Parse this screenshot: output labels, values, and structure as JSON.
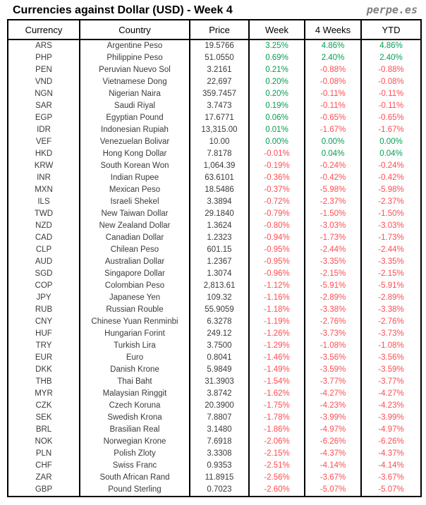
{
  "header": {
    "title": "Currencies against Dollar (USD) - Week 4",
    "logo": "perpe.es"
  },
  "colors": {
    "positive": "#00A152",
    "negative": "#FF4D50",
    "text": "#3a3a3a",
    "border": "#000000",
    "logo": "#7f7f7f"
  },
  "table": {
    "columns": [
      "Currency",
      "Country",
      "Price",
      "Week",
      "4 Weeks",
      "YTD"
    ],
    "rows": [
      {
        "code": "ARS",
        "country": "Argentine Peso",
        "price": "19.5766",
        "week": "3.25%",
        "weeks4": "4.86%",
        "ytd": "4.86%"
      },
      {
        "code": "PHP",
        "country": "Philippine Peso",
        "price": "51.0550",
        "week": "0.69%",
        "weeks4": "2.40%",
        "ytd": "2.40%"
      },
      {
        "code": "PEN",
        "country": "Peruvian Nuevo Sol",
        "price": "3.2161",
        "week": "0.21%",
        "weeks4": "-0.88%",
        "ytd": "-0.88%"
      },
      {
        "code": "VND",
        "country": "Vietnamese Dong",
        "price": "22,697",
        "week": "0.20%",
        "weeks4": "-0.08%",
        "ytd": "-0.08%"
      },
      {
        "code": "NGN",
        "country": "Nigerian Naira",
        "price": "359.7457",
        "week": "0.20%",
        "weeks4": "-0.11%",
        "ytd": "-0.11%"
      },
      {
        "code": "SAR",
        "country": "Saudi Riyal",
        "price": "3.7473",
        "week": "0.19%",
        "weeks4": "-0.11%",
        "ytd": "-0.11%"
      },
      {
        "code": "EGP",
        "country": "Egyptian Pound",
        "price": "17.6771",
        "week": "0.06%",
        "weeks4": "-0.65%",
        "ytd": "-0.65%"
      },
      {
        "code": "IDR",
        "country": "Indonesian Rupiah",
        "price": "13,315.00",
        "week": "0.01%",
        "weeks4": "-1.67%",
        "ytd": "-1.67%"
      },
      {
        "code": "VEF",
        "country": "Venezuelan Bolivar",
        "price": "10.00",
        "week": "0.00%",
        "weeks4": "0.00%",
        "ytd": "0.00%"
      },
      {
        "code": "HKD",
        "country": "Hong Kong Dollar",
        "price": "7.8178",
        "week": "-0.01%",
        "weeks4": "0.04%",
        "ytd": "0.04%"
      },
      {
        "code": "KRW",
        "country": "South Korean Won",
        "price": "1,064.39",
        "week": "-0.19%",
        "weeks4": "-0.24%",
        "ytd": "-0.24%"
      },
      {
        "code": "INR",
        "country": "Indian Rupee",
        "price": "63.6101",
        "week": "-0.36%",
        "weeks4": "-0.42%",
        "ytd": "-0.42%"
      },
      {
        "code": "MXN",
        "country": "Mexican Peso",
        "price": "18.5486",
        "week": "-0.37%",
        "weeks4": "-5.98%",
        "ytd": "-5.98%"
      },
      {
        "code": "ILS",
        "country": "Israeli Shekel",
        "price": "3.3894",
        "week": "-0.72%",
        "weeks4": "-2.37%",
        "ytd": "-2.37%"
      },
      {
        "code": "TWD",
        "country": "New Taiwan Dollar",
        "price": "29.1840",
        "week": "-0.79%",
        "weeks4": "-1.50%",
        "ytd": "-1.50%"
      },
      {
        "code": "NZD",
        "country": "New Zealand Dollar",
        "price": "1.3624",
        "week": "-0.80%",
        "weeks4": "-3.03%",
        "ytd": "-3.03%"
      },
      {
        "code": "CAD",
        "country": "Canadian Dollar",
        "price": "1.2323",
        "week": "-0.94%",
        "weeks4": "-1.73%",
        "ytd": "-1.73%"
      },
      {
        "code": "CLP",
        "country": "Chilean Peso",
        "price": "601.15",
        "week": "-0.95%",
        "weeks4": "-2.44%",
        "ytd": "-2.44%"
      },
      {
        "code": "AUD",
        "country": "Australian Dollar",
        "price": "1.2367",
        "week": "-0.95%",
        "weeks4": "-3.35%",
        "ytd": "-3.35%"
      },
      {
        "code": "SGD",
        "country": "Singapore Dollar",
        "price": "1.3074",
        "week": "-0.96%",
        "weeks4": "-2.15%",
        "ytd": "-2.15%"
      },
      {
        "code": "COP",
        "country": "Colombian Peso",
        "price": "2,813.61",
        "week": "-1.12%",
        "weeks4": "-5.91%",
        "ytd": "-5.91%"
      },
      {
        "code": "JPY",
        "country": "Japanese Yen",
        "price": "109.32",
        "week": "-1.16%",
        "weeks4": "-2.89%",
        "ytd": "-2.89%"
      },
      {
        "code": "RUB",
        "country": "Russian Rouble",
        "price": "55.9059",
        "week": "-1.18%",
        "weeks4": "-3.38%",
        "ytd": "-3.38%"
      },
      {
        "code": "CNY",
        "country": "Chinese Yuan Renminbi",
        "price": "6.3278",
        "week": "-1.19%",
        "weeks4": "-2.76%",
        "ytd": "-2.76%"
      },
      {
        "code": "HUF",
        "country": "Hungarian Forint",
        "price": "249.12",
        "week": "-1.26%",
        "weeks4": "-3.73%",
        "ytd": "-3.73%"
      },
      {
        "code": "TRY",
        "country": "Turkish Lira",
        "price": "3.7500",
        "week": "-1.29%",
        "weeks4": "-1.08%",
        "ytd": "-1.08%"
      },
      {
        "code": "EUR",
        "country": "Euro",
        "price": "0.8041",
        "week": "-1.46%",
        "weeks4": "-3.56%",
        "ytd": "-3.56%"
      },
      {
        "code": "DKK",
        "country": "Danish Krone",
        "price": "5.9849",
        "week": "-1.49%",
        "weeks4": "-3.59%",
        "ytd": "-3.59%"
      },
      {
        "code": "THB",
        "country": "Thai Baht",
        "price": "31.3903",
        "week": "-1.54%",
        "weeks4": "-3.77%",
        "ytd": "-3.77%"
      },
      {
        "code": "MYR",
        "country": "Malaysian Ringgit",
        "price": "3.8742",
        "week": "-1.62%",
        "weeks4": "-4.27%",
        "ytd": "-4.27%"
      },
      {
        "code": "CZK",
        "country": "Czech Koruna",
        "price": "20.3900",
        "week": "-1.75%",
        "weeks4": "-4.23%",
        "ytd": "-4.23%"
      },
      {
        "code": "SEK",
        "country": "Swedish Krona",
        "price": "7.8807",
        "week": "-1.78%",
        "weeks4": "-3.99%",
        "ytd": "-3.99%"
      },
      {
        "code": "BRL",
        "country": "Brasilian Real",
        "price": "3.1480",
        "week": "-1.86%",
        "weeks4": "-4.97%",
        "ytd": "-4.97%"
      },
      {
        "code": "NOK",
        "country": "Norwegian Krone",
        "price": "7.6918",
        "week": "-2.06%",
        "weeks4": "-6.26%",
        "ytd": "-6.26%"
      },
      {
        "code": "PLN",
        "country": "Polish Zloty",
        "price": "3.3308",
        "week": "-2.15%",
        "weeks4": "-4.37%",
        "ytd": "-4.37%"
      },
      {
        "code": "CHF",
        "country": "Swiss Franc",
        "price": "0.9353",
        "week": "-2.51%",
        "weeks4": "-4.14%",
        "ytd": "-4.14%"
      },
      {
        "code": "ZAR",
        "country": "South African Rand",
        "price": "11.8915",
        "week": "-2.56%",
        "weeks4": "-3.67%",
        "ytd": "-3.67%"
      },
      {
        "code": "GBP",
        "country": "Pound Sterling",
        "price": "0.7023",
        "week": "-2.60%",
        "weeks4": "-5.07%",
        "ytd": "-5.07%"
      }
    ]
  }
}
